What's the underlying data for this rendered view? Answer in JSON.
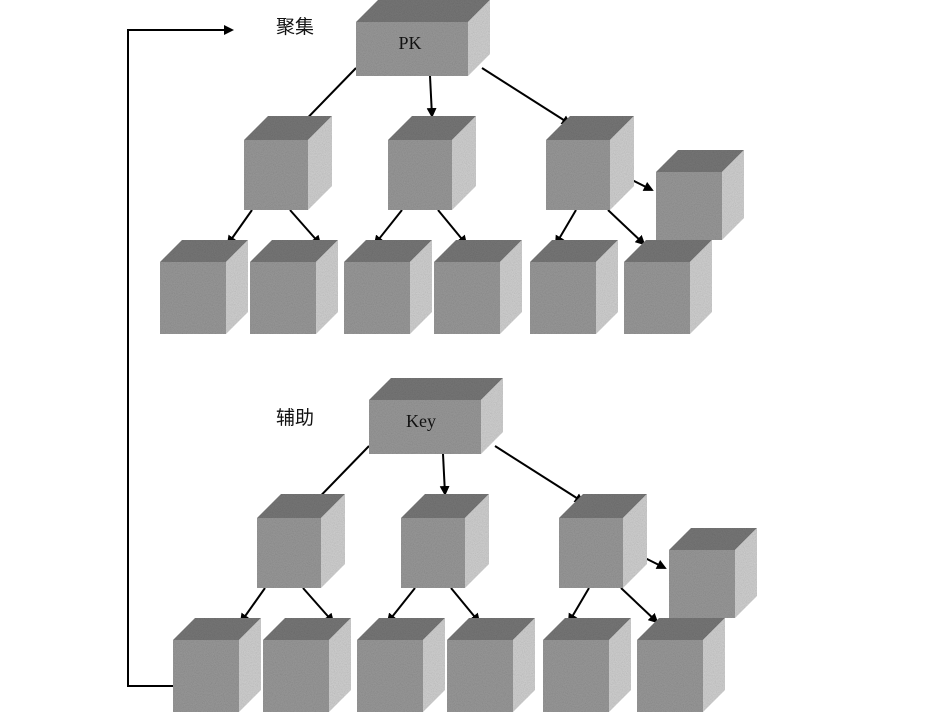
{
  "diagram": {
    "clustered_index": {
      "label": "聚集",
      "root_text": "PK"
    },
    "secondary_index": {
      "label": "辅助",
      "root_text": "Key"
    },
    "colors": {
      "cube_front": "#9a9a9a",
      "cube_top": "#787878",
      "cube_side": "#d2d2d2",
      "line": "#000000"
    }
  }
}
